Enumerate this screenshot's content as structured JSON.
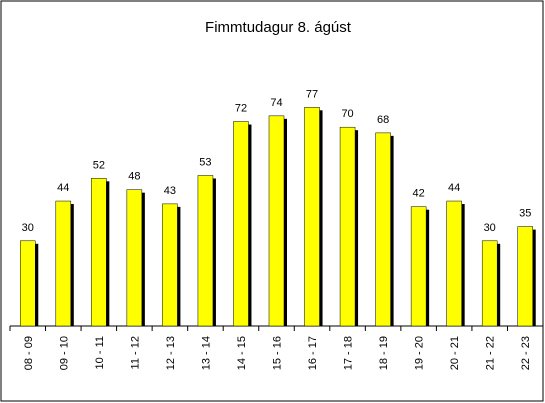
{
  "chart_data": {
    "type": "bar",
    "title": "Fimmtudagur 8. ágúst",
    "categories": [
      "08 - 09",
      "09 - 10",
      "10 - 11",
      "11 - 12",
      "12 - 13",
      "13 - 14",
      "14 - 15",
      "15 - 16",
      "16 - 17",
      "17 - 18",
      "18 - 19",
      "19 - 20",
      "20 - 21",
      "21 - 22",
      "22 - 23"
    ],
    "values": [
      30,
      44,
      52,
      48,
      43,
      53,
      72,
      74,
      77,
      70,
      68,
      42,
      44,
      30,
      35
    ],
    "color": "#ffff00",
    "ylim": [
      0,
      100
    ]
  }
}
